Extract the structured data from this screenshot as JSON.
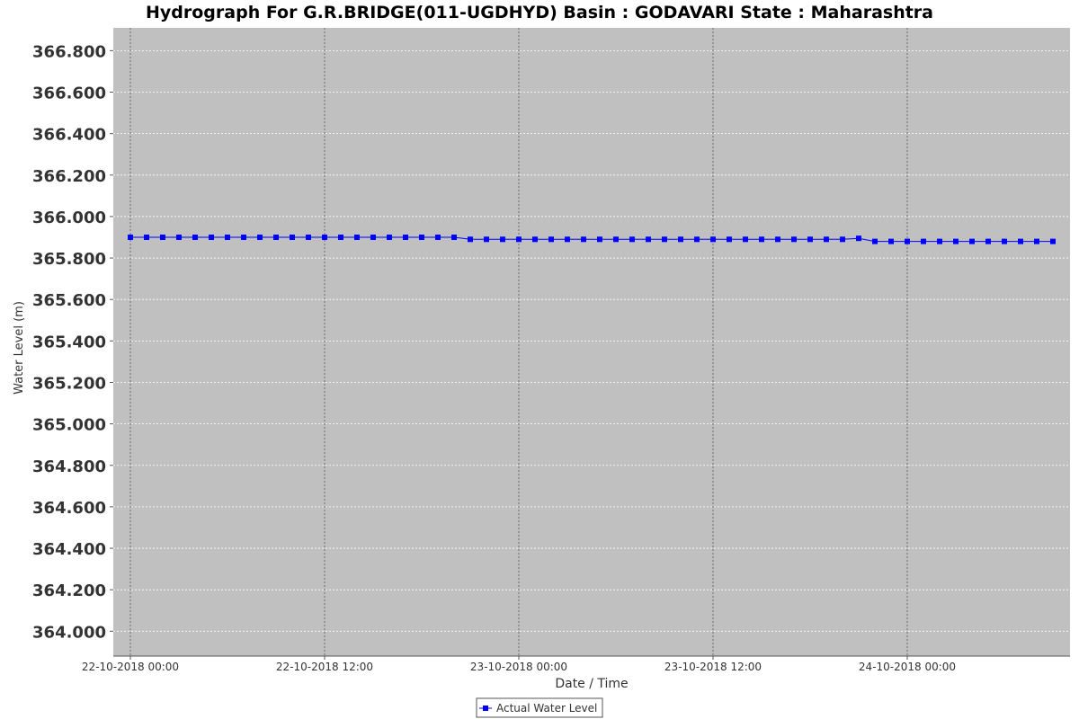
{
  "chart_data": {
    "type": "line",
    "title": "Hydrograph For G.R.BRIDGE(011-UGDHYD) Basin : GODAVARI State : Maharashtra",
    "xlabel": "Date / Time",
    "ylabel": "Water Level (m)",
    "ylim": [
      363.88,
      366.91
    ],
    "yticks": [
      "364.000",
      "364.200",
      "364.400",
      "364.600",
      "364.800",
      "365.000",
      "365.200",
      "365.400",
      "365.600",
      "365.800",
      "366.000",
      "366.200",
      "366.400",
      "366.600",
      "366.800"
    ],
    "xticks": [
      "22-10-2018 00:00",
      "22-10-2018 12:00",
      "23-10-2018 00:00",
      "23-10-2018 12:00",
      "24-10-2018 00:00"
    ],
    "x_interval_hours": 1,
    "grid": true,
    "legend_position": "bottom",
    "colors": {
      "series": "#0000ff",
      "plot_bg": "#c0c0c0",
      "grid": "#ffffff",
      "domain_grid": "#555555"
    },
    "series": [
      {
        "name": "Actual Water Level",
        "x_start": "22-10-2018 00:00",
        "values": [
          365.9,
          365.9,
          365.9,
          365.9,
          365.9,
          365.9,
          365.9,
          365.9,
          365.9,
          365.9,
          365.9,
          365.9,
          365.9,
          365.9,
          365.9,
          365.9,
          365.9,
          365.9,
          365.9,
          365.9,
          365.9,
          365.89,
          365.89,
          365.89,
          365.89,
          365.89,
          365.89,
          365.89,
          365.89,
          365.89,
          365.89,
          365.89,
          365.89,
          365.89,
          365.89,
          365.89,
          365.89,
          365.89,
          365.89,
          365.89,
          365.89,
          365.89,
          365.89,
          365.89,
          365.89,
          365.895,
          365.88,
          365.88,
          365.88,
          365.88,
          365.88,
          365.88,
          365.88,
          365.88,
          365.88,
          365.88,
          365.88,
          365.88
        ]
      }
    ]
  }
}
